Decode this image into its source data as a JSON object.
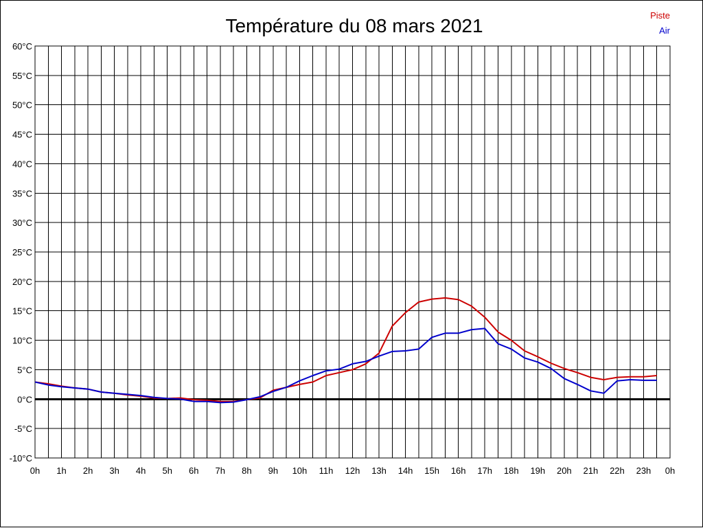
{
  "chart_data": {
    "type": "line",
    "title": "Température du 08 mars 2021",
    "xlabel": "",
    "ylabel": "",
    "x_ticks": [
      "0h",
      "1h",
      "2h",
      "3h",
      "4h",
      "5h",
      "6h",
      "7h",
      "8h",
      "9h",
      "10h",
      "11h",
      "12h",
      "13h",
      "14h",
      "15h",
      "16h",
      "17h",
      "18h",
      "19h",
      "20h",
      "21h",
      "22h",
      "23h",
      "0h"
    ],
    "y_ticks": [
      "60°C",
      "55°C",
      "50°C",
      "45°C",
      "40°C",
      "35°C",
      "30°C",
      "25°C",
      "20°C",
      "15°C",
      "10°C",
      "5°C",
      "0°C",
      "-5°C",
      "-10°C"
    ],
    "xlim": [
      0,
      24
    ],
    "ylim": [
      -10,
      60
    ],
    "y_step": 5,
    "grid": true,
    "legend_position": "top-right",
    "x": [
      0,
      0.5,
      1,
      1.5,
      2,
      2.5,
      3,
      3.5,
      4,
      4.5,
      5,
      5.5,
      6,
      6.5,
      7,
      7.5,
      8,
      8.5,
      9,
      9.5,
      10,
      10.5,
      11,
      11.5,
      12,
      12.5,
      13,
      13.5,
      14,
      14.5,
      15,
      15.5,
      16,
      16.5,
      17,
      17.5,
      18,
      18.5,
      19,
      19.5,
      20,
      20.5,
      21,
      21.5,
      22,
      22.5,
      23,
      23.5
    ],
    "series": [
      {
        "name": "Piste",
        "color": "#cc0000",
        "values": [
          2.9,
          2.6,
          2.2,
          1.9,
          1.7,
          1.2,
          1.0,
          0.7,
          0.5,
          0.2,
          0.1,
          0.2,
          -0.1,
          -0.2,
          -0.4,
          -0.4,
          -0.1,
          0.2,
          1.5,
          2.0,
          2.5,
          2.9,
          4.0,
          4.5,
          5.0,
          6.0,
          7.8,
          12.4,
          14.7,
          16.5,
          17.0,
          17.2,
          16.9,
          15.8,
          13.9,
          11.4,
          10.0,
          8.2,
          7.2,
          6.1,
          5.2,
          4.5,
          3.7,
          3.3,
          3.7,
          3.8,
          3.8,
          4.0
        ]
      },
      {
        "name": "Air",
        "color": "#0000cc",
        "values": [
          2.9,
          2.4,
          2.1,
          1.9,
          1.7,
          1.2,
          1.0,
          0.8,
          0.6,
          0.3,
          0.1,
          0.0,
          -0.4,
          -0.4,
          -0.6,
          -0.5,
          -0.1,
          0.4,
          1.3,
          2.0,
          3.1,
          4.0,
          4.8,
          5.1,
          6.0,
          6.4,
          7.3,
          8.1,
          8.2,
          8.5,
          10.5,
          11.2,
          11.2,
          11.8,
          12.0,
          9.4,
          8.5,
          7.0,
          6.3,
          5.2,
          3.5,
          2.5,
          1.4,
          1.0,
          3.1,
          3.3,
          3.2,
          3.2
        ]
      }
    ]
  }
}
